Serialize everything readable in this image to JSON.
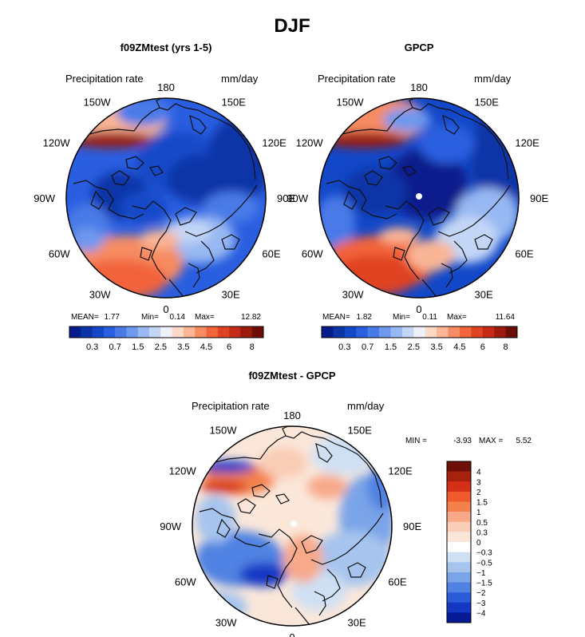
{
  "title": "DJF",
  "chart_data": [
    {
      "type": "heatmap",
      "projection": "north-polar-stereographic",
      "title": "f09ZMtest (yrs 1-5)",
      "variable_label": "Precipitation rate",
      "units": "mm/day",
      "longitude_labels": [
        "180",
        "150E",
        "120E",
        "90E",
        "60E",
        "30E",
        "0",
        "30W",
        "60W",
        "90W",
        "120W",
        "150W"
      ],
      "stats": {
        "mean_label": "MEAN=",
        "mean": "1.77",
        "min_label": "Min=",
        "min": "0.14",
        "max_label": "Max=",
        "max": "12.82"
      },
      "color_levels": [
        0.2,
        0.3,
        0.5,
        0.7,
        1,
        1.5,
        2,
        2.5,
        3,
        3.5,
        4,
        4.5,
        5,
        6,
        7,
        8
      ],
      "colorbar_tick_labels": [
        "0.3",
        "0.7",
        "1.5",
        "2.5",
        "3.5",
        "4.5",
        "6",
        "8"
      ]
    },
    {
      "type": "heatmap",
      "projection": "north-polar-stereographic",
      "title": "GPCP",
      "variable_label": "Precipitation rate",
      "units": "mm/day",
      "longitude_labels": [
        "180",
        "150E",
        "120E",
        "90E",
        "60E",
        "30E",
        "0",
        "30W",
        "60W",
        "90W",
        "120W",
        "150W"
      ],
      "stats": {
        "mean_label": "MEAN=",
        "mean": "1.82",
        "min_label": "Min=",
        "min": "0.11",
        "max_label": "Max=",
        "max": "11.64"
      },
      "color_levels": [
        0.2,
        0.3,
        0.5,
        0.7,
        1,
        1.5,
        2,
        2.5,
        3,
        3.5,
        4,
        4.5,
        5,
        6,
        7,
        8
      ],
      "colorbar_tick_labels": [
        "0.3",
        "0.7",
        "1.5",
        "2.5",
        "3.5",
        "4.5",
        "6",
        "8"
      ]
    },
    {
      "type": "heatmap",
      "projection": "north-polar-stereographic",
      "title": "f09ZMtest - GPCP",
      "variable_label": "Precipitation rate",
      "units": "mm/day",
      "longitude_labels": [
        "180",
        "150E",
        "120E",
        "90E",
        "60E",
        "30E",
        "0",
        "30W",
        "60W",
        "90W",
        "120W",
        "150W"
      ],
      "stats": {
        "min_label": "MIN =",
        "min": "-3.93",
        "max_label": "MAX =",
        "max": "5.52"
      },
      "color_levels": [
        -4,
        -3,
        -2,
        -1.5,
        -1,
        -0.5,
        -0.3,
        0,
        0.3,
        0.5,
        1,
        1.5,
        2,
        3,
        4
      ],
      "colorbar_tick_labels": [
        "4",
        "3",
        "2",
        "1.5",
        "1",
        "0.5",
        "0.3",
        "0",
        "−0.3",
        "−0.5",
        "−1",
        "−1.5",
        "−2",
        "−3",
        "−4"
      ]
    }
  ],
  "colors": {
    "seq_scale": [
      "#081d8c",
      "#0a34a8",
      "#1248c8",
      "#2a5ee0",
      "#4a7ae8",
      "#6e98ee",
      "#97b8f2",
      "#c3d6f6",
      "#eef2f8",
      "#fbd9c6",
      "#f9b595",
      "#f68c62",
      "#f2643a",
      "#e04222",
      "#c42a14",
      "#9c1a0c",
      "#6e0e06"
    ],
    "div_scale": [
      "#6e0e06",
      "#a8200e",
      "#d43018",
      "#f05a2c",
      "#f4804c",
      "#f7a98a",
      "#f9cdb6",
      "#fbe7da",
      "#ffffff",
      "#cfe0f4",
      "#a6c4ee",
      "#7aa4e8",
      "#4f82e2",
      "#2a5cd8",
      "#1238c4",
      "#061a96"
    ],
    "coast": "#111111",
    "outline": "#000000"
  }
}
